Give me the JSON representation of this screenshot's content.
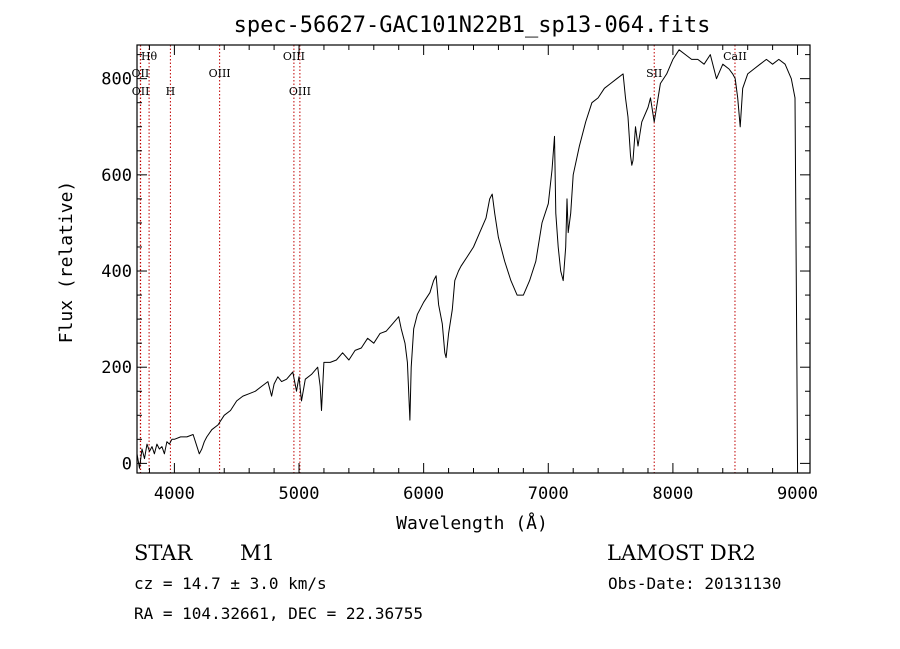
{
  "chart_data": {
    "type": "line",
    "title": "spec-56627-GAC101N22B1_sp13-064.fits",
    "xlabel": "Wavelength (Å)",
    "ylabel": "Flux (relative)",
    "xlim": [
      3700,
      9100
    ],
    "ylim": [
      -20,
      870
    ],
    "x_ticks": [
      4000,
      5000,
      6000,
      7000,
      8000,
      9000
    ],
    "y_ticks": [
      0,
      200,
      400,
      600,
      800
    ],
    "grid": false,
    "series": [
      {
        "x": [
          3700,
          3720,
          3740,
          3760,
          3780,
          3800,
          3820,
          3840,
          3860,
          3880,
          3900,
          3920,
          3940,
          3960,
          3980,
          4000,
          4050,
          4100,
          4150,
          4200,
          4220,
          4240,
          4260,
          4300,
          4350,
          4400,
          4450,
          4500,
          4550,
          4600,
          4650,
          4700,
          4750,
          4780,
          4800,
          4830,
          4860,
          4900,
          4950,
          4980,
          5000,
          5020,
          5050,
          5100,
          5150,
          5170,
          5180,
          5200,
          5250,
          5300,
          5350,
          5400,
          5450,
          5500,
          5550,
          5600,
          5650,
          5700,
          5750,
          5800,
          5820,
          5850,
          5870,
          5890,
          5900,
          5920,
          5950,
          6000,
          6050,
          6080,
          6100,
          6120,
          6150,
          6170,
          6180,
          6200,
          6230,
          6250,
          6280,
          6300,
          6350,
          6400,
          6450,
          6500,
          6530,
          6550,
          6570,
          6600,
          6650,
          6700,
          6750,
          6800,
          6850,
          6900,
          6950,
          7000,
          7030,
          7050,
          7060,
          7080,
          7100,
          7120,
          7140,
          7150,
          7160,
          7180,
          7200,
          7250,
          7300,
          7350,
          7400,
          7450,
          7500,
          7550,
          7600,
          7620,
          7640,
          7660,
          7670,
          7680,
          7700,
          7720,
          7750,
          7800,
          7820,
          7850,
          7900,
          7950,
          8000,
          8050,
          8100,
          8150,
          8200,
          8250,
          8300,
          8350,
          8400,
          8450,
          8480,
          8500,
          8520,
          8540,
          8560,
          8600,
          8650,
          8700,
          8750,
          8800,
          8850,
          8900,
          8950,
          8980,
          8995,
          9000
        ],
        "y": [
          20,
          -10,
          30,
          10,
          40,
          25,
          35,
          20,
          40,
          30,
          35,
          20,
          45,
          40,
          50,
          50,
          55,
          55,
          60,
          20,
          30,
          45,
          55,
          70,
          80,
          100,
          110,
          130,
          140,
          145,
          150,
          160,
          170,
          140,
          165,
          180,
          170,
          175,
          190,
          150,
          180,
          130,
          175,
          185,
          200,
          160,
          110,
          210,
          210,
          215,
          230,
          215,
          235,
          240,
          260,
          250,
          270,
          275,
          290,
          305,
          280,
          250,
          210,
          90,
          200,
          280,
          310,
          335,
          355,
          380,
          390,
          330,
          290,
          230,
          220,
          270,
          320,
          380,
          400,
          410,
          430,
          450,
          480,
          510,
          550,
          560,
          520,
          470,
          420,
          380,
          350,
          350,
          380,
          420,
          500,
          540,
          610,
          680,
          520,
          450,
          400,
          380,
          450,
          550,
          480,
          520,
          600,
          660,
          710,
          750,
          760,
          780,
          790,
          800,
          810,
          760,
          720,
          640,
          620,
          630,
          700,
          660,
          710,
          740,
          760,
          710,
          790,
          810,
          840,
          860,
          850,
          840,
          840,
          830,
          850,
          800,
          830,
          820,
          810,
          800,
          760,
          700,
          780,
          810,
          820,
          830,
          840,
          830,
          840,
          830,
          800,
          760,
          200,
          0
        ]
      }
    ],
    "spectral_lines": [
      {
        "label": "Hθ",
        "x": 3797,
        "row": 1
      },
      {
        "label": "OII",
        "x": 3727,
        "row": 2
      },
      {
        "label": "OII",
        "x": 3729,
        "row": 3
      },
      {
        "label": "H",
        "x": 3968,
        "row": 3
      },
      {
        "label": "OIII",
        "x": 4363,
        "row": 2
      },
      {
        "label": "OIII",
        "x": 4959,
        "row": 1
      },
      {
        "label": "OIII",
        "x": 5007,
        "row": 3
      },
      {
        "label": "SII",
        "x": 7850,
        "row": 2
      },
      {
        "label": "CaII",
        "x": 8498,
        "row": 1
      }
    ]
  },
  "info": {
    "class": "STAR",
    "subclass": "M1",
    "survey": "LAMOST DR2",
    "cz": "cz = 14.7 ± 3.0 km/s",
    "obs_date": "Obs-Date: 20131130",
    "coords": "RA = 104.32661, DEC =  22.36755"
  }
}
